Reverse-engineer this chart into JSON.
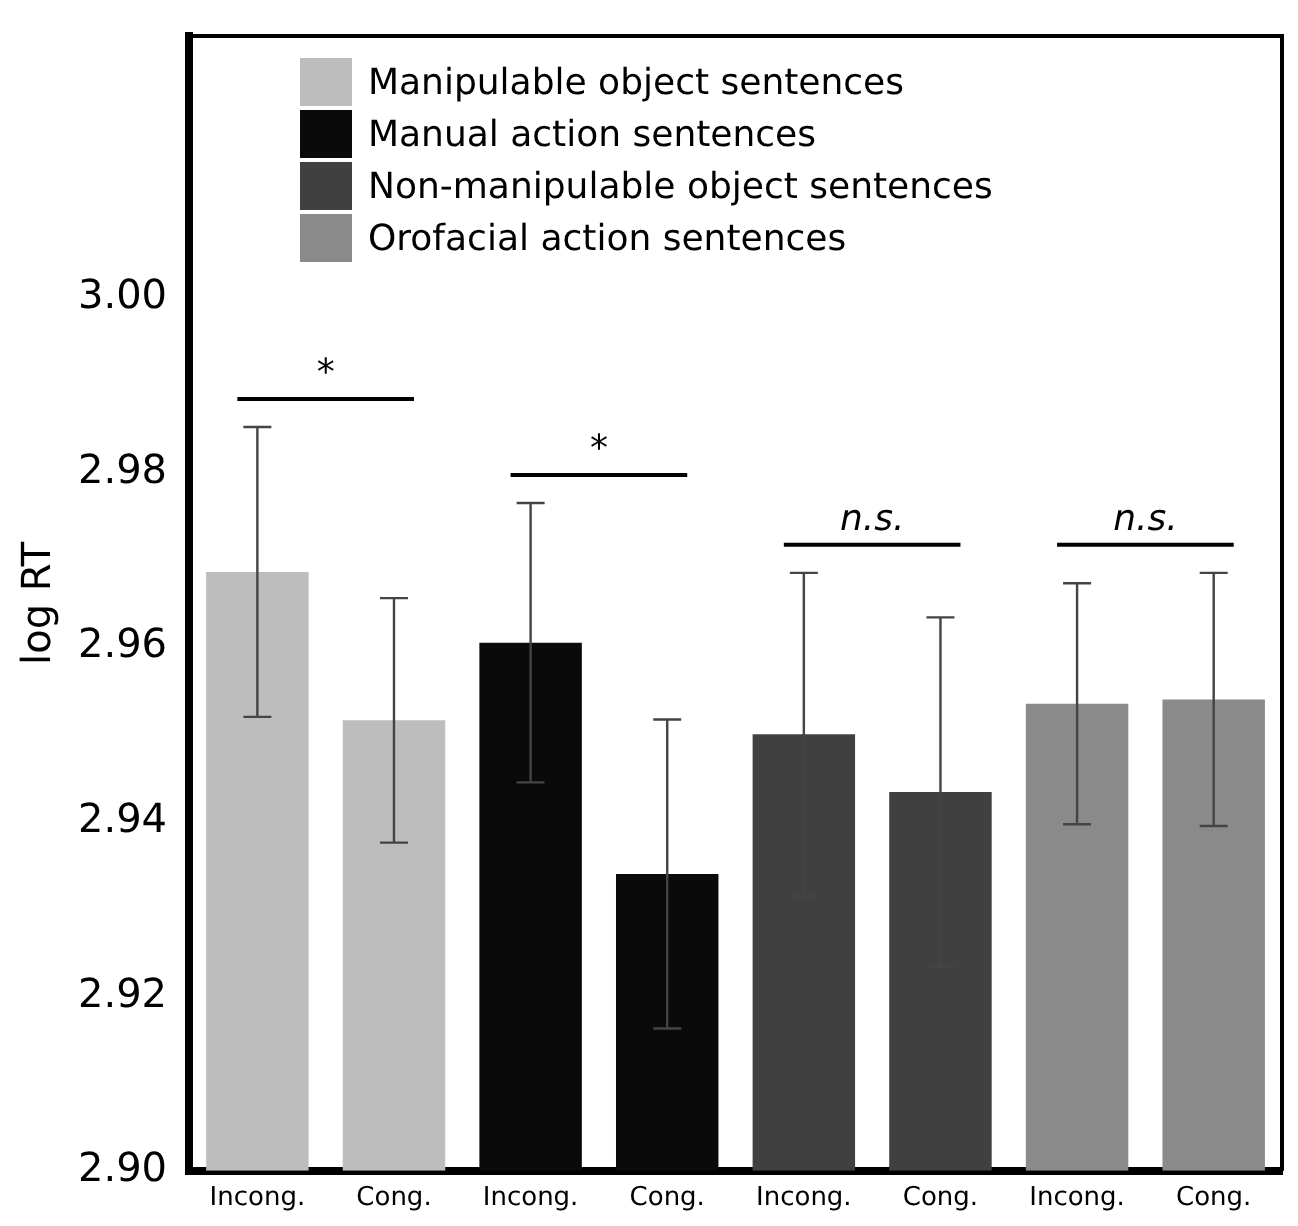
{
  "chart_data": {
    "type": "bar",
    "ylabel": "log RT",
    "categories": [
      "Incong.",
      "Cong.",
      "Incong.",
      "Cong.",
      "Incong.",
      "Cong.",
      "Incong.",
      "Cong."
    ],
    "series": [
      {
        "name": "Manipulable object sentences",
        "color": "#bdbdbd",
        "values": [
          2.9686,
          2.9516,
          null,
          null,
          null,
          null,
          null,
          null
        ],
        "errors": [
          0.0166,
          0.014,
          null,
          null,
          null,
          null,
          null,
          null
        ]
      },
      {
        "name": "Manual action sentences",
        "color": "#0a0a0a",
        "values": [
          null,
          null,
          2.9605,
          2.934,
          null,
          null,
          null,
          null
        ],
        "errors": [
          null,
          null,
          0.016,
          0.0177,
          null,
          null,
          null,
          null
        ]
      },
      {
        "name": "Non-manipulable object sentences",
        "color": "#404040",
        "values": [
          null,
          null,
          null,
          null,
          2.95,
          2.9434,
          null,
          null
        ],
        "errors": [
          null,
          null,
          null,
          null,
          0.0185,
          0.02,
          null,
          null
        ]
      },
      {
        "name": "Orofacial action sentences",
        "color": "#8a8a8a",
        "values": [
          null,
          null,
          null,
          null,
          null,
          null,
          2.9535,
          2.954
        ],
        "errors": [
          null,
          null,
          null,
          null,
          null,
          null,
          0.0138,
          0.0145
        ]
      }
    ],
    "annotations": [
      "*",
      "*",
      "n.s.",
      "n.s."
    ],
    "ylim": [
      2.9,
      3.03
    ],
    "yticks": [
      {
        "value": 2.9,
        "label": "2.90"
      },
      2.92,
      2.94,
      2.96,
      2.98,
      {
        "value": 3.0,
        "label": "3.00"
      }
    ],
    "grid": false,
    "legend": "top left"
  }
}
